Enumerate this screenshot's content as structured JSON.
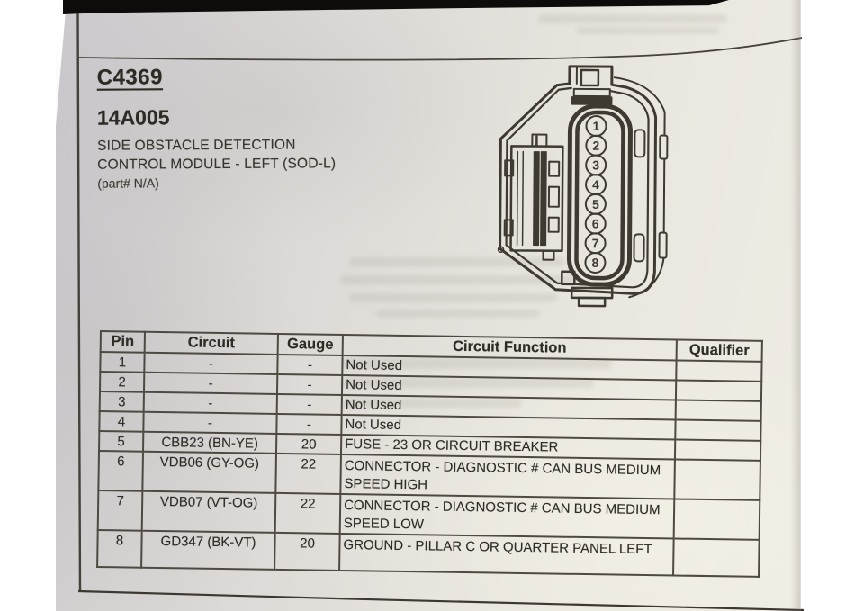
{
  "header": {
    "connector_id": "C4369",
    "part_code": "14A005",
    "description_lines": [
      "SIDE OBSTACLE DETECTION",
      "CONTROL MODULE - LEFT (SOD-L)"
    ],
    "part_note": "(part# N/A)"
  },
  "connector_diagram": {
    "label": "8-pin connector face view",
    "pin_numbers": [
      "1",
      "2",
      "3",
      "4",
      "5",
      "6",
      "7",
      "8"
    ]
  },
  "pinout_table": {
    "headers": [
      "Pin",
      "Circuit",
      "Gauge",
      "Circuit Function",
      "Qualifier"
    ],
    "rows": [
      {
        "pin": "1",
        "circuit": "-",
        "gauge": "-",
        "function": "Not Used",
        "qualifier": ""
      },
      {
        "pin": "2",
        "circuit": "-",
        "gauge": "-",
        "function": "Not Used",
        "qualifier": ""
      },
      {
        "pin": "3",
        "circuit": "-",
        "gauge": "-",
        "function": "Not Used",
        "qualifier": ""
      },
      {
        "pin": "4",
        "circuit": "-",
        "gauge": "-",
        "function": "Not Used",
        "qualifier": ""
      },
      {
        "pin": "5",
        "circuit": "CBB23 (BN-YE)",
        "gauge": "20",
        "function": "FUSE - 23 OR CIRCUIT BREAKER",
        "qualifier": ""
      },
      {
        "pin": "6",
        "circuit": "VDB06 (GY-OG)",
        "gauge": "22",
        "function": "CONNECTOR - DIAGNOSTIC # CAN BUS MEDIUM SPEED HIGH",
        "qualifier": ""
      },
      {
        "pin": "7",
        "circuit": "VDB07 (VT-OG)",
        "gauge": "22",
        "function": "CONNECTOR - DIAGNOSTIC # CAN BUS MEDIUM SPEED LOW",
        "qualifier": ""
      },
      {
        "pin": "8",
        "circuit": "GD347 (BK-VT)",
        "gauge": "20",
        "function": "GROUND - PILLAR C OR QUARTER PANEL LEFT",
        "qualifier": ""
      }
    ]
  },
  "colors": {
    "ink": "#3f3a31",
    "page_light": "#efece4",
    "page_dark": "#cbc9cd",
    "photo_black": "#0d0c0a",
    "table_border": "#4e4941"
  }
}
